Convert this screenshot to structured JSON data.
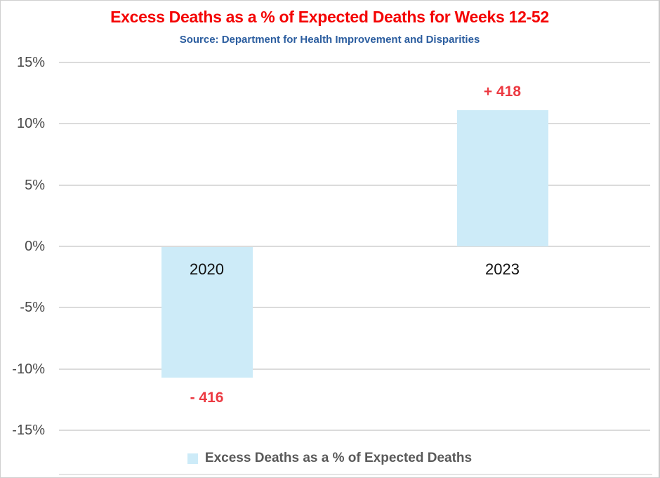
{
  "header": {
    "title": "Excess Deaths as a % of Expected Deaths for Weeks 12-52",
    "subtitle": "Source: Department for Health Improvement and Disparities"
  },
  "legend": {
    "label": "Excess Deaths as a % of Expected Deaths",
    "swatch_color": "#CDEBF8"
  },
  "colors": {
    "title_red": "#F40404",
    "subtitle_blue": "#2B5D9F",
    "bar_fill": "#CDEBF8",
    "data_label_red": "#EC3A42",
    "gridline": "#DBDBDB",
    "axis_label": "#4A4A4A",
    "legend_text": "#595959"
  },
  "chart_data": {
    "type": "bar",
    "title": "Excess Deaths as a % of Expected Deaths for Weeks 12-52",
    "subtitle": "Source: Department for Health Improvement and Disparities",
    "categories": [
      "2020",
      "2023"
    ],
    "series": [
      {
        "name": "Excess Deaths as a % of Expected Deaths",
        "values": [
          -10.7,
          11.1
        ],
        "data_labels": [
          "- 416",
          "+ 418"
        ]
      }
    ],
    "xlabel": "",
    "ylabel": "",
    "ylim": [
      -15,
      15
    ],
    "ytick_step": 5,
    "ytick_labels": [
      "15%",
      "10%",
      "5%",
      "0%",
      "-5%",
      "-10%",
      "-15%"
    ],
    "grid": true,
    "legend_position": "bottom",
    "bar_color": "#CDEBF8"
  }
}
